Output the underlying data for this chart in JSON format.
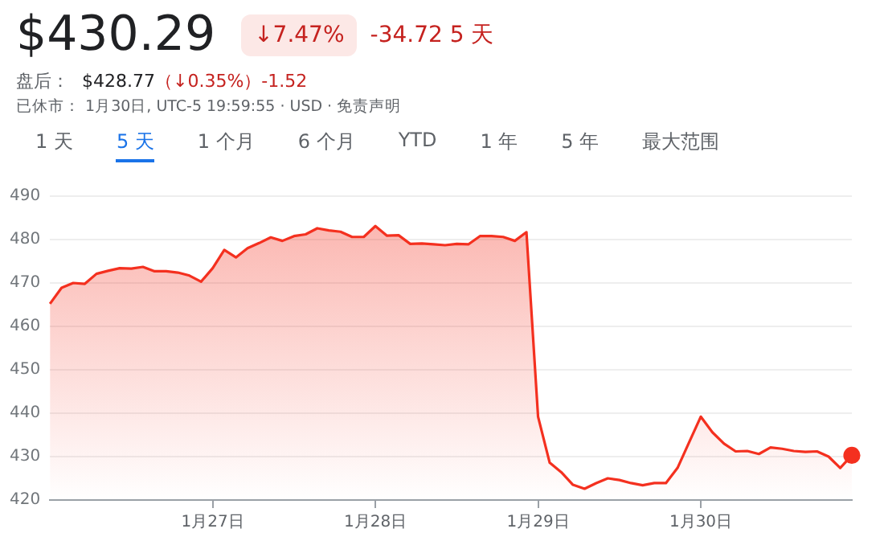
{
  "chart_data": {
    "type": "area",
    "title": "$430.29",
    "subtitle": "↓7.47%",
    "annotations": [
      "-34.72 5 天",
      "盘后：",
      "$428.77",
      "（↓0.35%）-1.52",
      "已休市： 1月30日, UTC-5 19:59:55 · USD · 免责声明",
      "1 天",
      "5 天",
      "1 个月",
      "6 个月",
      "YTD",
      "1 年",
      "5 年",
      "最大范围"
    ],
    "categories": [
      null,
      null,
      null,
      null,
      null,
      null,
      null,
      null,
      null,
      null,
      null,
      null,
      null,
      null,
      "1月27日",
      null,
      null,
      null,
      null,
      null,
      null,
      null,
      null,
      null,
      null,
      null,
      null,
      null,
      "1月28日",
      null,
      null,
      null,
      null,
      null,
      null,
      null,
      null,
      null,
      null,
      null,
      null,
      null,
      "1月29日",
      null,
      null,
      null,
      null,
      null,
      null,
      null,
      null,
      null,
      null,
      null,
      null,
      null,
      "1月30日",
      null,
      null,
      null,
      null,
      null,
      null,
      null,
      null,
      null,
      null,
      null,
      null,
      null
    ],
    "series": [
      {
        "color": "#f4301f",
        "values": [
          465.2,
          468.9,
          470.0,
          469.8,
          472.1,
          472.8,
          473.4,
          473.3,
          473.7,
          472.7,
          472.7,
          472.4,
          471.7,
          470.3,
          473.4,
          477.6,
          475.9,
          478.0,
          479.2,
          480.5,
          479.7,
          480.8,
          481.2,
          482.6,
          482.1,
          481.8,
          480.6,
          480.6,
          483.1,
          480.9,
          481.0,
          479.0,
          479.1,
          478.9,
          478.7,
          479.0,
          478.9,
          480.8,
          480.8,
          480.6,
          479.7,
          481.7,
          439.2,
          428.6,
          426.4,
          423.5,
          422.6,
          423.9,
          425.0,
          424.6,
          423.9,
          423.4,
          423.9,
          423.9,
          427.4,
          433.3,
          439.2,
          435.6,
          433.0,
          431.2,
          431.3,
          430.6,
          432.1,
          431.8,
          431.3,
          431.1,
          431.2,
          430.0,
          427.4,
          430.3
        ]
      }
    ],
    "ylim": [
      420,
      490
    ],
    "yticks": [
      420,
      430,
      440,
      450,
      460,
      470,
      480,
      490
    ],
    "grid": "y",
    "legend": false
  }
}
